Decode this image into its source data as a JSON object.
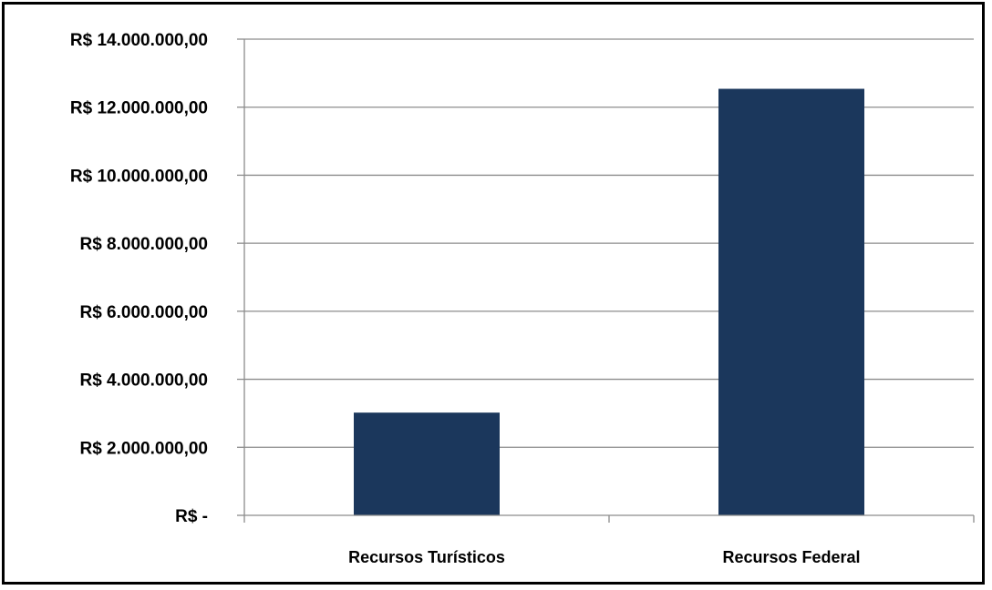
{
  "chart_data": {
    "type": "bar",
    "categories": [
      "Recursos Turísticos",
      "Recursos  Federal"
    ],
    "values": [
      3020000,
      12540000
    ],
    "ylim": [
      0,
      14000000
    ],
    "ytick_values": [
      0,
      2000000,
      4000000,
      6000000,
      8000000,
      10000000,
      12000000,
      14000000
    ],
    "yticks": [
      "R$ -",
      "R$ 2.000.000,00",
      "R$ 4.000.000,00",
      "R$ 6.000.000,00",
      "R$ 8.000.000,00",
      "R$ 10.000.000,00",
      "R$ 12.000.000,00",
      "R$ 14.000.000,00"
    ],
    "grid": true,
    "legend": "none",
    "bar_color": "#1b375c"
  }
}
